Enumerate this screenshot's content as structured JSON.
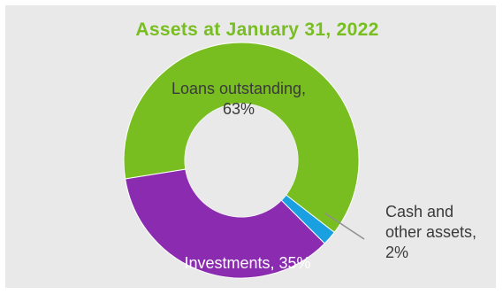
{
  "chart_data": {
    "type": "pie",
    "title": "Assets at January 31, 2022",
    "colors": {
      "title": "#78be21"
    },
    "slices": [
      {
        "label_lines": [
          "Loans outstanding,",
          "63%"
        ],
        "label": "Loans outstanding",
        "value": 63,
        "color": "#78be21"
      },
      {
        "label_lines": [
          "Cash and",
          "other assets,",
          "2%"
        ],
        "label": "Cash and other assets",
        "value": 2,
        "color": "#1aa0e0"
      },
      {
        "label_lines": [
          "Investments, 35%"
        ],
        "label": "Investments",
        "value": 35,
        "color": "#8a2bb0"
      }
    ]
  }
}
